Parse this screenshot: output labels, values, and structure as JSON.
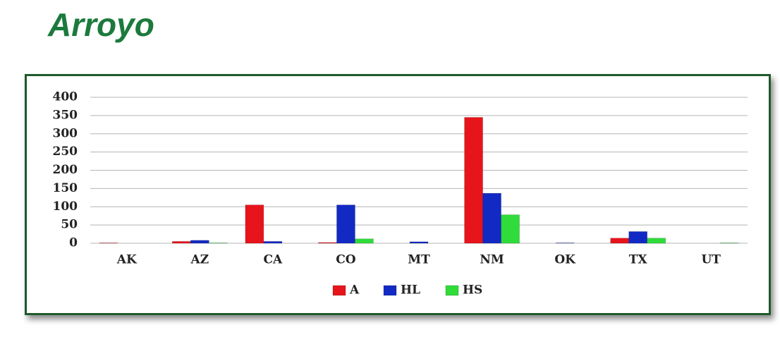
{
  "chart_data": {
    "type": "bar",
    "title": "Arroyo",
    "categories": [
      "AK",
      "AZ",
      "CA",
      "CO",
      "MT",
      "NM",
      "OK",
      "TX",
      "UT"
    ],
    "series": [
      {
        "name": "A",
        "color": "#e8141b",
        "values": [
          1,
          5,
          105,
          2,
          0,
          345,
          0,
          14,
          0
        ]
      },
      {
        "name": "HL",
        "color": "#1229c4",
        "values": [
          0,
          8,
          5,
          105,
          4,
          137,
          1,
          32,
          0
        ]
      },
      {
        "name": "HS",
        "color": "#2fdc3a",
        "values": [
          0,
          1,
          0,
          12,
          0,
          78,
          0,
          14,
          1
        ]
      }
    ],
    "ylim": [
      0,
      400
    ],
    "yticks": [
      0,
      50,
      100,
      150,
      200,
      250,
      300,
      350,
      400
    ],
    "grid": true,
    "legend": "bottom"
  }
}
